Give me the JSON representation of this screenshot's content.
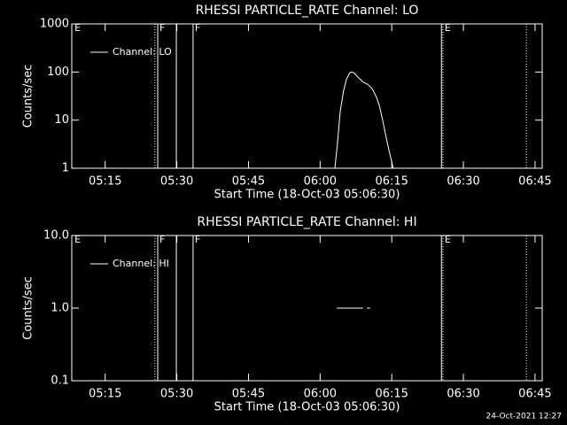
{
  "chart_data": [
    {
      "type": "line",
      "title": "RHESSI PARTICLE_RATE Channel: LO",
      "xlabel": "Start Time (18-Oct-03 05:06:30)",
      "ylabel": "Counts/sec",
      "log_y": true,
      "color": "#ffffff",
      "legend_corner": "upper-left",
      "xlim": [
        308,
        406.5
      ],
      "xticks": [
        {
          "value": 315,
          "label": "05:15"
        },
        {
          "value": 330,
          "label": "05:30"
        },
        {
          "value": 345,
          "label": "05:45"
        },
        {
          "value": 360,
          "label": "06:00"
        },
        {
          "value": 375,
          "label": "06:15"
        },
        {
          "value": 390,
          "label": "06:30"
        },
        {
          "value": 405,
          "label": "06:45"
        }
      ],
      "ylim": [
        1,
        1000
      ],
      "yticks": [
        1,
        10,
        100,
        1000
      ],
      "markers": [
        {
          "x": 308.2,
          "style": "none",
          "label": "E"
        },
        {
          "x": 325.4,
          "style": "dotted"
        },
        {
          "x": 326.0,
          "style": "solid",
          "label": "F"
        },
        {
          "x": 329.9,
          "style": "solid"
        },
        {
          "x": 333.4,
          "style": "solid",
          "label": "F"
        },
        {
          "x": 385.4,
          "style": "solid"
        },
        {
          "x": 385.7,
          "style": "dotted",
          "label": "E"
        },
        {
          "x": 403.2,
          "style": "dotted"
        }
      ],
      "series": [
        {
          "name": "Channel: LO",
          "color": "#ffffff",
          "x": [
            363.1,
            363.6,
            364.2,
            364.9,
            365.5,
            366.2,
            366.6,
            367.2,
            367.6,
            368.1,
            369.0,
            370.0,
            370.9,
            371.8,
            372.4,
            373.1,
            373.9,
            374.6,
            375.3
          ],
          "values": [
            1,
            3,
            15,
            40,
            70,
            95,
            100,
            95,
            85,
            75,
            62,
            55,
            45,
            30,
            20,
            10,
            4,
            2,
            1
          ]
        }
      ]
    },
    {
      "type": "line",
      "title": "RHESSI PARTICLE_RATE Channel: HI",
      "xlabel": "Start Time (18-Oct-03 05:06:30)",
      "ylabel": "Counts/sec",
      "log_y": true,
      "color": "#ffffff",
      "legend_corner": "upper-left",
      "xlim": [
        308,
        406.5
      ],
      "xticks": [
        {
          "value": 315,
          "label": "05:15"
        },
        {
          "value": 330,
          "label": "05:30"
        },
        {
          "value": 345,
          "label": "05:45"
        },
        {
          "value": 360,
          "label": "06:00"
        },
        {
          "value": 375,
          "label": "06:15"
        },
        {
          "value": 390,
          "label": "06:30"
        },
        {
          "value": 405,
          "label": "06:45"
        }
      ],
      "ylim": [
        0.1,
        10
      ],
      "yticks": [
        0.1,
        {
          "value": 1,
          "label": "1.0"
        },
        {
          "value": 10,
          "label": "10.0"
        }
      ],
      "markers": [
        {
          "x": 308.2,
          "style": "none",
          "label": "E"
        },
        {
          "x": 325.4,
          "style": "dotted"
        },
        {
          "x": 326.0,
          "style": "solid",
          "label": "F"
        },
        {
          "x": 329.9,
          "style": "solid"
        },
        {
          "x": 333.4,
          "style": "solid",
          "label": "F"
        },
        {
          "x": 385.4,
          "style": "solid"
        },
        {
          "x": 385.7,
          "style": "dotted",
          "label": "E"
        },
        {
          "x": 403.2,
          "style": "dotted"
        }
      ],
      "series": [
        {
          "name": "Channel: HI",
          "color": "#ffffff",
          "x": [
            363.5,
            369.0,
            369.4,
            369.8,
            370.5
          ],
          "values": [
            1,
            1,
            null,
            1,
            1
          ]
        }
      ]
    }
  ],
  "footer": "24-Oct-2021 12:27"
}
